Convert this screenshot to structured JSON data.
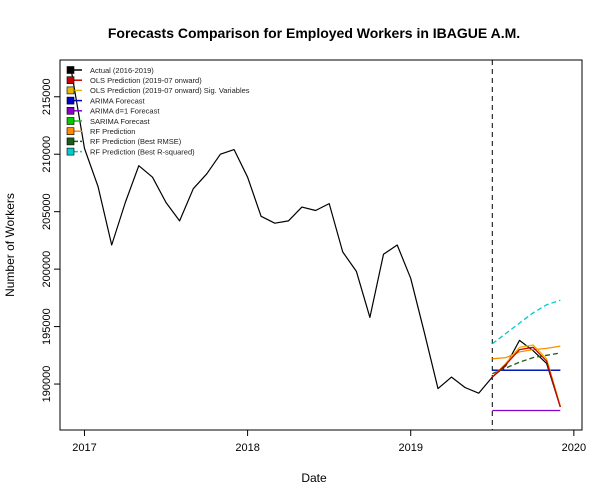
{
  "chart_data": {
    "type": "line",
    "title": "Forecasts Comparison for Employed Workers in IBAGUE A.M.",
    "xlabel": "Date",
    "ylabel": "Number of Workers",
    "xlim": [
      2016.85,
      2020.05
    ],
    "ylim": [
      186000,
      218200
    ],
    "x_ticks": [
      2017,
      2018,
      2019,
      2020
    ],
    "y_ticks": [
      190000,
      195000,
      200000,
      205000,
      210000,
      215000
    ],
    "legend_position": "top-left",
    "forecast_start": 2019.5,
    "series": [
      {
        "name": "Actual (2016-2019)",
        "color": "#000000",
        "dash": "solid",
        "x": [
          2016.917,
          2017.0,
          2017.083,
          2017.167,
          2017.25,
          2017.333,
          2017.417,
          2017.5,
          2017.583,
          2017.667,
          2017.75,
          2017.833,
          2017.917,
          2018.0,
          2018.083,
          2018.167,
          2018.25,
          2018.333,
          2018.417,
          2018.5,
          2018.583,
          2018.667,
          2018.75,
          2018.833,
          2018.917,
          2019.0,
          2019.083,
          2019.167,
          2019.25,
          2019.333,
          2019.417,
          2019.5,
          2019.583,
          2019.667,
          2019.75,
          2019.833,
          2019.917
        ],
        "y": [
          217500,
          210500,
          207200,
          202100,
          205800,
          209000,
          208000,
          205800,
          204200,
          207000,
          208300,
          210000,
          210400,
          208000,
          204600,
          204000,
          204200,
          205400,
          205100,
          205700,
          201500,
          199800,
          195800,
          201300,
          202100,
          199200,
          194500,
          189600,
          190600,
          189700,
          189200,
          190600,
          191600,
          193800,
          192900,
          191800,
          188000
        ]
      },
      {
        "name": "OLS Prediction (2019-07 onward)",
        "color": "#cc0000",
        "dash": "solid",
        "x": [
          2019.5,
          2019.583,
          2019.667,
          2019.75,
          2019.833,
          2019.917
        ],
        "y": [
          190600,
          191700,
          193000,
          193200,
          192000,
          188000
        ]
      },
      {
        "name": "OLS Prediction (2019-07 onward) Sig. Variables",
        "color": "#e6b800",
        "dash": "solid",
        "x": [
          2019.5,
          2019.583,
          2019.667,
          2019.75,
          2019.833,
          2019.917
        ],
        "y": [
          190600,
          191800,
          193200,
          193400,
          192200,
          188100
        ]
      },
      {
        "name": "ARIMA Forecast",
        "color": "#0000cc",
        "dash": "solid",
        "x": [
          2019.5,
          2019.583,
          2019.667,
          2019.75,
          2019.833,
          2019.917
        ],
        "y": [
          191200,
          191200,
          191200,
          191200,
          191200,
          191200
        ]
      },
      {
        "name": "ARIMA d=1 Forecast",
        "color": "#8800cc",
        "dash": "solid",
        "x": [
          2019.5,
          2019.583,
          2019.667,
          2019.75,
          2019.833,
          2019.917
        ],
        "y": [
          187700,
          187700,
          187700,
          187700,
          187700,
          187700
        ]
      },
      {
        "name": "SARIMA Forecast",
        "color": "#00cc00",
        "dash": "solid",
        "x": [
          2019.5,
          2019.583,
          2019.667,
          2019.75,
          2019.833,
          2019.917
        ],
        "y": [
          191200,
          191200,
          191200,
          191200,
          191200,
          191200
        ]
      },
      {
        "name": "RF Prediction",
        "color": "#ff8c00",
        "dash": "solid",
        "x": [
          2019.5,
          2019.583,
          2019.667,
          2019.75,
          2019.833,
          2019.917
        ],
        "y": [
          192200,
          192300,
          192800,
          193000,
          193100,
          193300
        ]
      },
      {
        "name": "RF Prediction (Best RMSE)",
        "color": "#1a5c1a",
        "dash": "dashed",
        "x": [
          2019.5,
          2019.583,
          2019.667,
          2019.75,
          2019.833,
          2019.917
        ],
        "y": [
          190900,
          191400,
          191900,
          192300,
          192500,
          192700
        ]
      },
      {
        "name": "RF Prediction (Best R-squared)",
        "color": "#00cccc",
        "dash": "dashed",
        "x": [
          2019.5,
          2019.583,
          2019.667,
          2019.75,
          2019.833,
          2019.917
        ],
        "y": [
          193500,
          194400,
          195300,
          196200,
          196900,
          197300
        ]
      }
    ]
  }
}
